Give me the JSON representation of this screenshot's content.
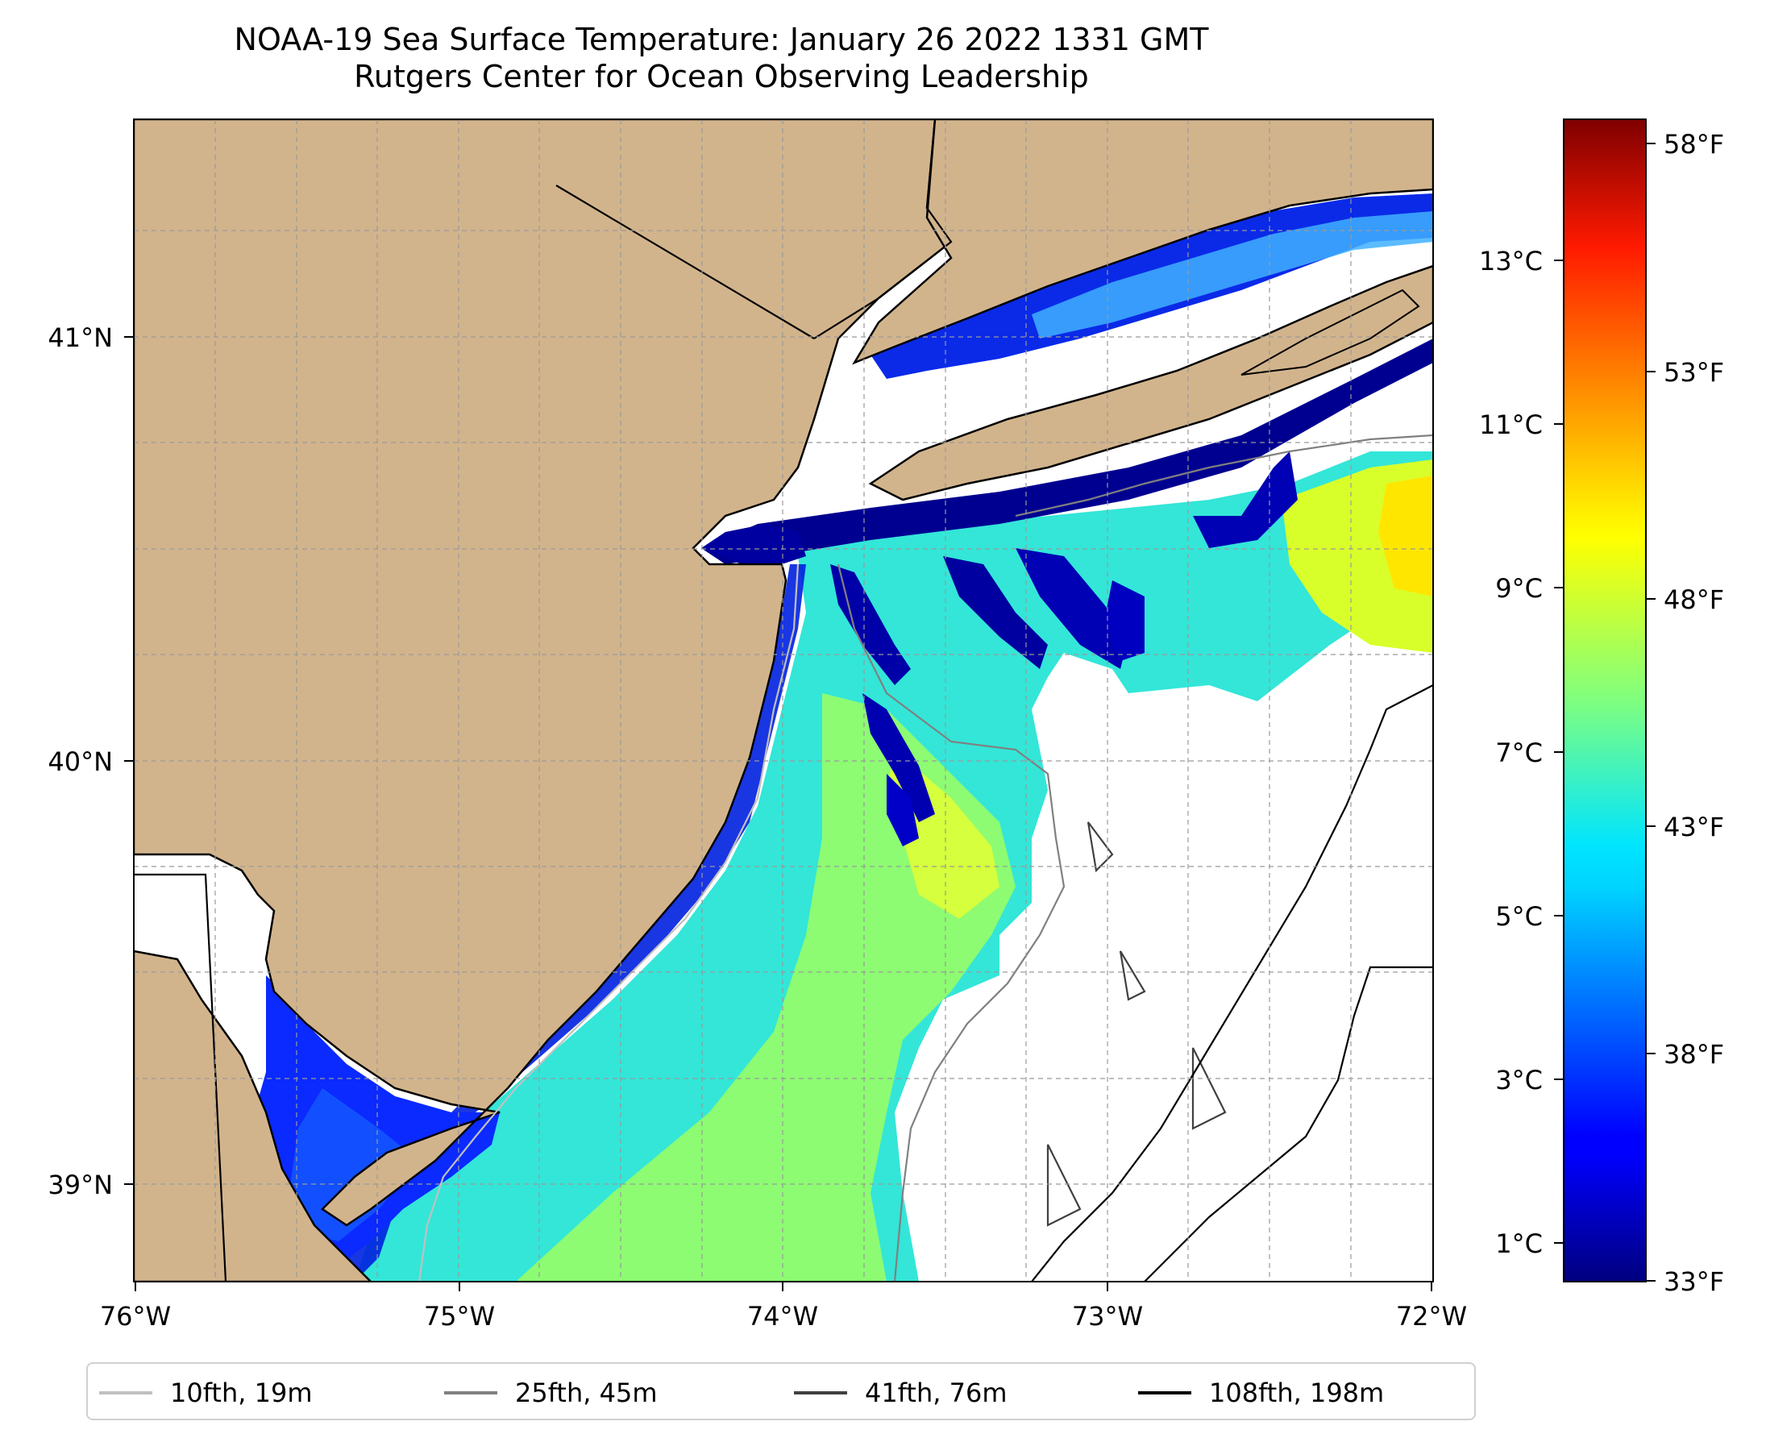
{
  "title": {
    "line1": "NOAA-19 Sea Surface Temperature: January 26 2022 1331 GMT",
    "line2": "Rutgers Center for Ocean Observing Leadership"
  },
  "map": {
    "lon_range": [
      -76.0,
      -72.0
    ],
    "lat_range": [
      38.75,
      41.5
    ],
    "x_ticks": [
      "76°W",
      "75°W",
      "74°W",
      "73°W",
      "72°W"
    ],
    "y_ticks": [
      "41°N",
      "40°N",
      "39°N"
    ],
    "land_color": "#d2b48c",
    "no_data_color": "#ffffff",
    "gridlines": true
  },
  "colorbar": {
    "colormap": "jet",
    "celsius_ticks": [
      "13°C",
      "11°C",
      "9°C",
      "7°C",
      "5°C",
      "3°C",
      "1°C"
    ],
    "fahrenheit_ticks": [
      "58°F",
      "53°F",
      "48°F",
      "43°F",
      "38°F",
      "33°F"
    ]
  },
  "legend": [
    {
      "label": "10fth, 19m",
      "color": "#c0c0c0"
    },
    {
      "label": "25fth, 45m",
      "color": "#808080"
    },
    {
      "label": "41fth, 76m",
      "color": "#404040"
    },
    {
      "label": "108fth, 198m",
      "color": "#000000"
    }
  ]
}
